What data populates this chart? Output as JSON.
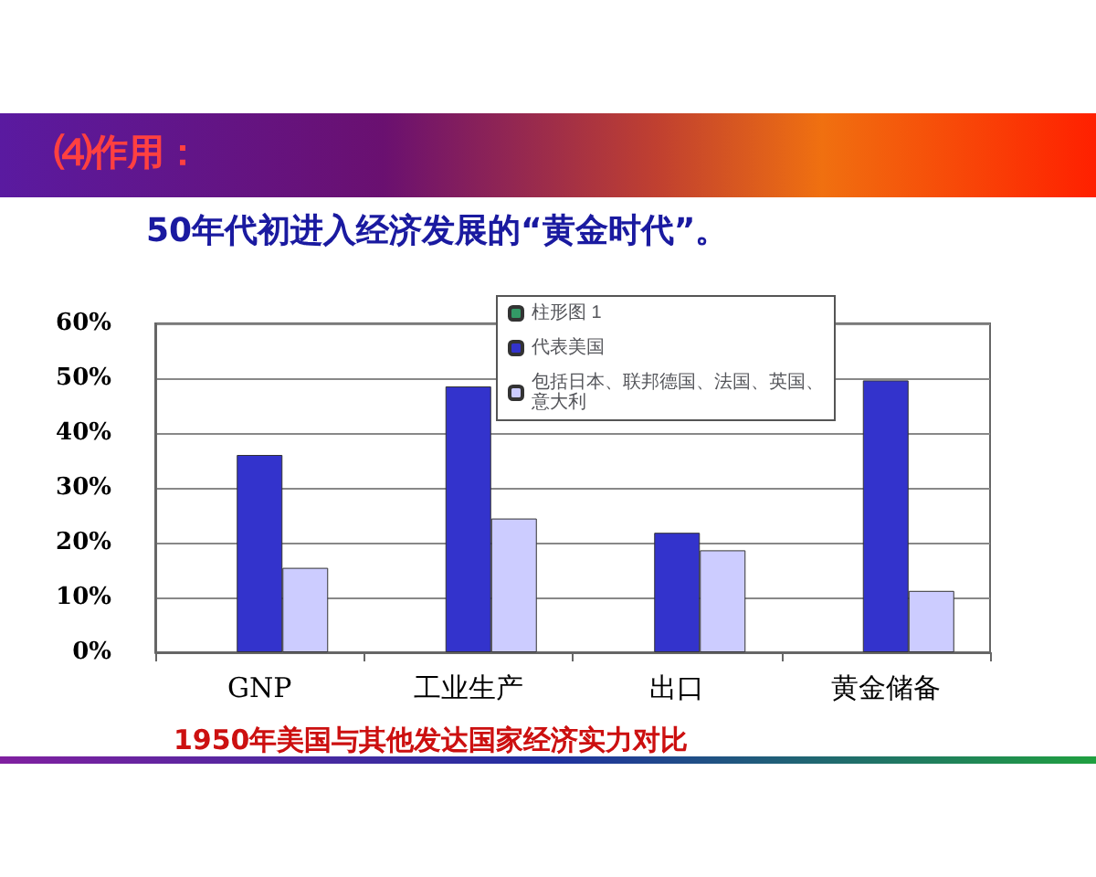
{
  "chart_data": {
    "type": "bar",
    "title": "⑷作用：",
    "subtitle": "50年代初进入经济发展的“黄金时代”。",
    "annotations": [
      "1950年美国与其他发达国家经济实力对比"
    ],
    "categories": [
      "GNP",
      "工业生产",
      "出口",
      "黄金储备"
    ],
    "series": [
      {
        "name": "柱形图 1",
        "color": "#339966",
        "values": [
          null,
          null,
          null,
          null
        ]
      },
      {
        "name": "代表美国",
        "color": "#3333cc",
        "values": [
          36,
          48.5,
          21.8,
          49.6
        ]
      },
      {
        "name": "包括日本、联邦德国、法国、英国、意大利",
        "color": "#ccccff",
        "values": [
          15.4,
          24.4,
          18.6,
          11.2
        ]
      }
    ],
    "ylim": [
      0,
      60
    ],
    "yticks": [
      {
        "value": 0,
        "label": "0%"
      },
      {
        "value": 10,
        "label": "10%"
      },
      {
        "value": 20,
        "label": "20%"
      },
      {
        "value": 30,
        "label": "30%"
      },
      {
        "value": 40,
        "label": "40%"
      },
      {
        "value": 50,
        "label": "50%"
      },
      {
        "value": 60,
        "label": "60%"
      }
    ],
    "grid": "y",
    "legend": "top"
  }
}
